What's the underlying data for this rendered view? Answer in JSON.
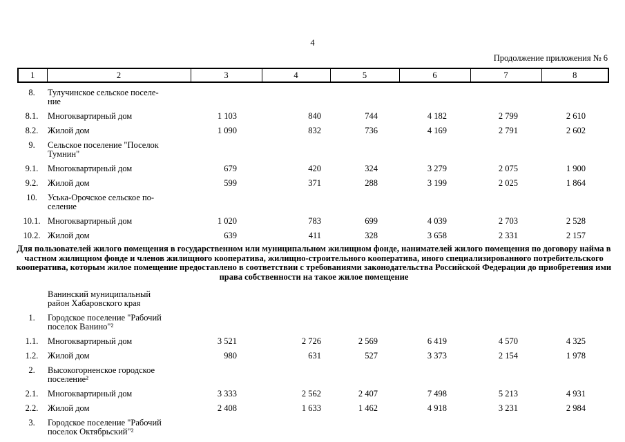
{
  "page": {
    "number": "4",
    "continuation": "Продолжение приложения № 6"
  },
  "note": "Для пользователей жилого помещения в государственном или муниципальном жилищном фонде, нанимателей жилого помещения по договору найма в частном жилищном фонде и членов жилищного кооператива, жилищно-строительного кооператива, иного специализированного потребительского кооператива, которым жилое помещение предоставлено в соответствии с требованиями законодательства Российской Федерации до приобретения ими права собственности на такое жилое помещение",
  "table": {
    "header": [
      "1",
      "2",
      "3",
      "4",
      "5",
      "6",
      "7",
      "8"
    ],
    "sections": [
      {
        "rows": [
          {
            "num": "8.",
            "name": [
              "Тулучинское сельское поселе-",
              "ние"
            ],
            "values": null
          },
          {
            "num": "8.1.",
            "name": [
              "Многоквартирный дом"
            ],
            "values": [
              "1 103",
              "840",
              "744",
              "4 182",
              "2 799",
              "2 610"
            ]
          },
          {
            "num": "8.2.",
            "name": [
              "Жилой дом"
            ],
            "values": [
              "1 090",
              "832",
              "736",
              "4 169",
              "2 791",
              "2 602"
            ]
          },
          {
            "num": "9.",
            "name": [
              "Сельское поселение \"Поселок",
              "Тумнин\""
            ],
            "values": null
          },
          {
            "num": "9.1.",
            "name": [
              "Многоквартирный дом"
            ],
            "values": [
              "679",
              "420",
              "324",
              "3 279",
              "2 075",
              "1 900"
            ]
          },
          {
            "num": "9.2.",
            "name": [
              "Жилой дом"
            ],
            "values": [
              "599",
              "371",
              "288",
              "3 199",
              "2 025",
              "1 864"
            ]
          },
          {
            "num": "10.",
            "name": [
              "Уська-Орочское сельское по-",
              "селение"
            ],
            "values": null
          },
          {
            "num": "10.1.",
            "name": [
              "Многоквартирный дом"
            ],
            "values": [
              "1 020",
              "783",
              "699",
              "4 039",
              "2 703",
              "2 528"
            ]
          },
          {
            "num": "10.2.",
            "name": [
              "Жилой дом"
            ],
            "values": [
              "639",
              "411",
              "328",
              "3 658",
              "2 331",
              "2 157"
            ]
          }
        ]
      },
      {
        "rows": [
          {
            "num": "",
            "name": [
              "Ванинский муниципальный",
              "район Хабаровского края"
            ],
            "values": null
          },
          {
            "num": "1.",
            "name": [
              "Городское поселение \"Рабочий",
              "поселок Ванино\"²"
            ],
            "values": null
          },
          {
            "num": "1.1.",
            "name": [
              "Многоквартирный дом"
            ],
            "values": [
              "3 521",
              "2 726",
              "2 569",
              "6 419",
              "4 570",
              "4 325"
            ]
          },
          {
            "num": "1.2.",
            "name": [
              "Жилой дом"
            ],
            "values": [
              "980",
              "631",
              "527",
              "3 373",
              "2 154",
              "1 978"
            ]
          },
          {
            "num": "2.",
            "name": [
              "Высокогорненское городское",
              "поселение²"
            ],
            "values": null
          },
          {
            "num": "2.1.",
            "name": [
              "Многоквартирный дом"
            ],
            "values": [
              "3 333",
              "2 562",
              "2 407",
              "7 498",
              "5 213",
              "4 931"
            ]
          },
          {
            "num": "2.2.",
            "name": [
              "Жилой дом"
            ],
            "values": [
              "2 408",
              "1 633",
              "1 462",
              "4 918",
              "3 231",
              "2 984"
            ]
          },
          {
            "num": "3.",
            "name": [
              "Городское поселение \"Рабочий",
              "поселок Октябрьский\"²"
            ],
            "values": null
          }
        ]
      }
    ]
  }
}
